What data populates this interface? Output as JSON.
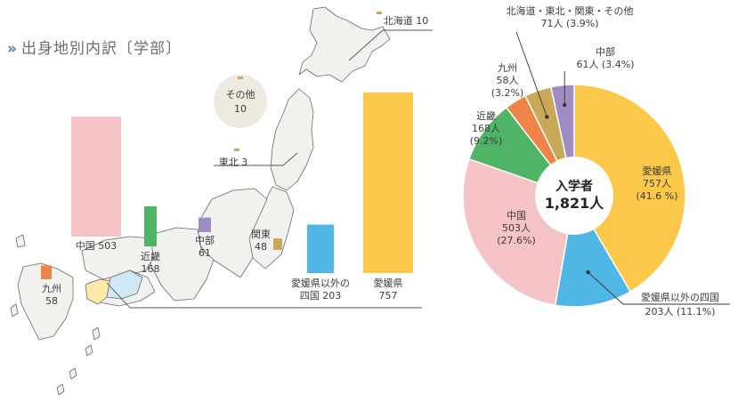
{
  "heading": {
    "chevron": "»",
    "title": "出身地別内訳〔学部〕"
  },
  "chart_data": [
    {
      "type": "bar",
      "categories": [
        "北海道",
        "東北",
        "関東",
        "中部",
        "近畿",
        "中国",
        "九州",
        "愛媛県以外の四国",
        "愛媛県",
        "その他"
      ],
      "values": [
        10,
        3,
        48,
        61,
        168,
        503,
        58,
        203,
        757,
        10
      ],
      "labels": [
        {
          "name": "北海道",
          "value": "10",
          "color": "#c9a957"
        },
        {
          "name": "東北",
          "value": "3",
          "color": "#c9a957"
        },
        {
          "name": "関東",
          "value": "48",
          "color": "#c9a957"
        },
        {
          "name": "中部",
          "value": "61",
          "color": "#a08cc4"
        },
        {
          "name": "近畿",
          "value": "168",
          "color": "#4fb465"
        },
        {
          "name": "中国",
          "value": "503",
          "color": "#f5c2c5"
        },
        {
          "name": "九州",
          "value": "58",
          "color": "#ef8448"
        },
        {
          "name": "愛媛県以外の\n四国",
          "value": "203",
          "color": "#4fb6e6"
        },
        {
          "name": "愛媛県",
          "value": "757",
          "color": "#fbc84a"
        },
        {
          "name": "その他",
          "value": "10",
          "color": "#c9a957"
        }
      ]
    },
    {
      "type": "pie",
      "center_title": "入学者",
      "center_total": "1,821人",
      "slices": [
        {
          "name": "愛媛県",
          "count": 757,
          "count_label": "757人",
          "pct_label": "(41.6 %)",
          "color": "#fbc84a"
        },
        {
          "name": "愛媛県以外の四国",
          "count": 203,
          "count_label": "203人",
          "pct_label": "(11.1%)",
          "color": "#4fb6e6"
        },
        {
          "name": "中国",
          "count": 503,
          "count_label": "503人",
          "pct_label": "(27.6%)",
          "color": "#f5c2c5"
        },
        {
          "name": "近畿",
          "count": 168,
          "count_label": "168人",
          "pct_label": "(9.2%)",
          "color": "#4fb465"
        },
        {
          "name": "九州",
          "count": 58,
          "count_label": "58人",
          "pct_label": "(3.2%)",
          "color": "#ef8448"
        },
        {
          "name": "北海道・東北・関東・その他",
          "count": 71,
          "count_label": "71人",
          "pct_label": "(3.9%)",
          "color": "#c9a957"
        },
        {
          "name": "中部",
          "count": 61,
          "count_label": "61人",
          "pct_label": "(3.4%)",
          "color": "#a08cc4"
        }
      ]
    }
  ]
}
